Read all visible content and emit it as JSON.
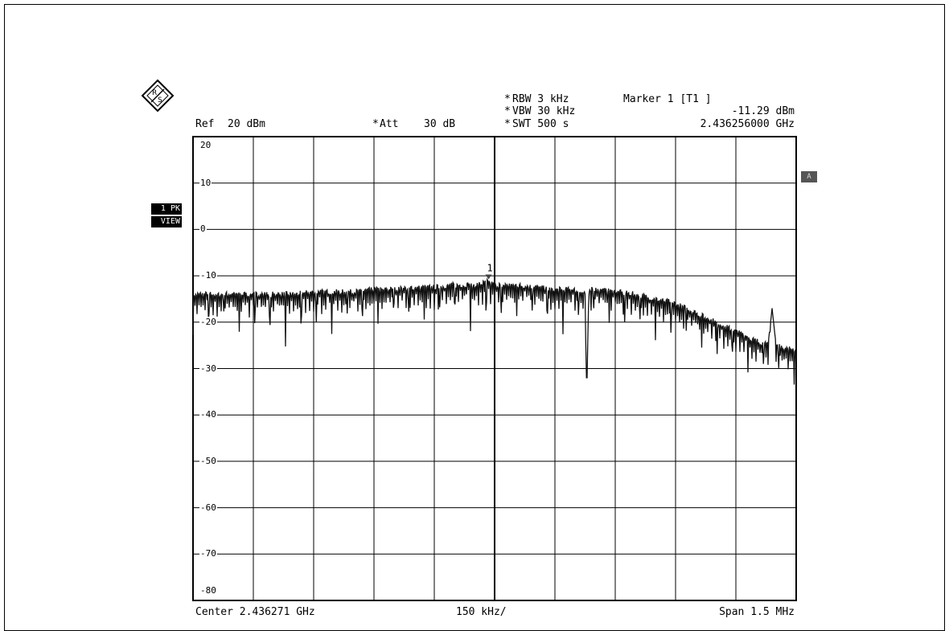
{
  "header": {
    "ref_label": "Ref",
    "ref_value": "20 dBm",
    "att_star": "*",
    "att_label": "Att",
    "att_value": "30 dB",
    "rbw_star": "*",
    "rbw": "RBW 3 kHz",
    "vbw_star": "*",
    "vbw": "VBW 30 kHz",
    "swt_star": "*",
    "swt": "SWT 500 s",
    "marker_title": "Marker 1 [T1 ]",
    "marker_level": "-11.29 dBm",
    "marker_freq": "2.436256000 GHz"
  },
  "side": {
    "trace_badge": "1 PK",
    "view_badge": "VIEW",
    "a_badge": "A"
  },
  "footer": {
    "center": "Center 2.436271 GHz",
    "per_div": "150 kHz/",
    "span": "Span 1.5 MHz"
  },
  "colors": {
    "trace": "#111111",
    "grid": "#000000"
  },
  "chart_data": {
    "type": "line",
    "title": "",
    "xlabel": "",
    "ylabel": "",
    "xlim": [
      0,
      1.5
    ],
    "ylim": [
      -80,
      20
    ],
    "yticks": [
      20,
      10,
      0,
      -10,
      -20,
      -30,
      -40,
      -50,
      -60,
      -70,
      -80
    ],
    "ytick_labels": [
      "20",
      "10",
      "0",
      "-10",
      "-20",
      "-30",
      "-40",
      "-50",
      "-60",
      "-70",
      "-80"
    ],
    "marker": {
      "label": "1",
      "x": 0.735,
      "y": -11.29
    },
    "series": [
      {
        "x": [
          0,
          0.05,
          0.1,
          0.15,
          0.2,
          0.25,
          0.3,
          0.35,
          0.4,
          0.45,
          0.5,
          0.55,
          0.6,
          0.65,
          0.7,
          0.735,
          0.75,
          0.8,
          0.85,
          0.9,
          0.95,
          0.975,
          0.978,
          0.98,
          0.984,
          0.99,
          1.0,
          1.05,
          1.1,
          1.15,
          1.2,
          1.25,
          1.3,
          1.35,
          1.4,
          1.43,
          1.44,
          1.45,
          1.5
        ],
        "y": [
          -14,
          -14,
          -14,
          -14,
          -14,
          -14,
          -13.5,
          -13.5,
          -13.5,
          -13,
          -13,
          -12.5,
          -12.5,
          -12,
          -12,
          -11.29,
          -12,
          -12,
          -12.5,
          -13,
          -13,
          -14,
          -32,
          -32,
          -14,
          -13,
          -13,
          -13.5,
          -14,
          -15,
          -16,
          -18,
          -20,
          -22,
          -24,
          -25,
          -17,
          -25,
          -26
        ]
      }
    ]
  }
}
